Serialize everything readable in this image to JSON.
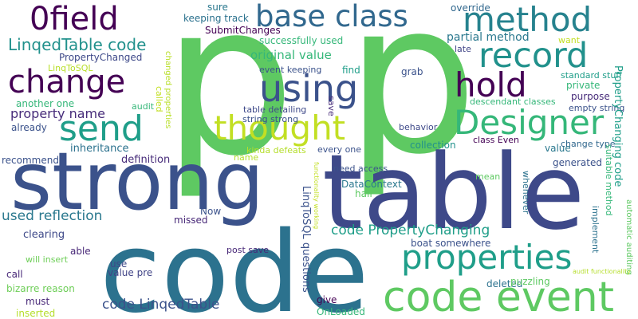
{
  "words": [
    {
      "text": "p",
      "color": "#5ec962"
    },
    {
      "text": "p",
      "color": "#5ec962"
    },
    {
      "text": "table",
      "color": "#3e4989"
    },
    {
      "text": "code",
      "color": "#2c728e"
    },
    {
      "text": "strong",
      "color": "#3b528b"
    },
    {
      "text": "code event",
      "color": "#5ec962"
    },
    {
      "text": "0field",
      "color": "#440154"
    },
    {
      "text": "base class",
      "color": "#31688e"
    },
    {
      "text": "method",
      "color": "#26828e"
    },
    {
      "text": "record",
      "color": "#21918c"
    },
    {
      "text": "change",
      "color": "#440154"
    },
    {
      "text": "using",
      "color": "#3b528b"
    },
    {
      "text": "hold",
      "color": "#440154"
    },
    {
      "text": "send",
      "color": "#1f9e89"
    },
    {
      "text": "thought",
      "color": "#c2df23"
    },
    {
      "text": "Designer",
      "color": "#35b779"
    },
    {
      "text": "properties",
      "color": "#1f9e89"
    },
    {
      "text": "LinqedTable code",
      "color": "#21918c"
    },
    {
      "text": "PropertyChanged",
      "color": "#3e4989"
    },
    {
      "text": "LinqToSQL",
      "color": "#b8de29"
    },
    {
      "text": "original value",
      "color": "#35b779"
    },
    {
      "text": "partial method",
      "color": "#2a788e"
    },
    {
      "text": "another one",
      "color": "#35b779"
    },
    {
      "text": "property name",
      "color": "#472c7a"
    },
    {
      "text": "already",
      "color": "#3b528b"
    },
    {
      "text": "inheritance",
      "color": "#2c728e"
    },
    {
      "text": "recommend",
      "color": "#3b528b"
    },
    {
      "text": "definition",
      "color": "#472c7a"
    },
    {
      "text": "used reflection",
      "color": "#2a788e"
    },
    {
      "text": "clearing",
      "color": "#3e4989"
    },
    {
      "text": "able",
      "color": "#482878"
    },
    {
      "text": "will insert",
      "color": "#6ece58"
    },
    {
      "text": "call",
      "color": "#482878"
    },
    {
      "text": "bizarre reason",
      "color": "#6ece58"
    },
    {
      "text": "must",
      "color": "#482878"
    },
    {
      "text": "inserted",
      "color": "#b5de2b"
    },
    {
      "text": "code LinqedTable",
      "color": "#3b528b"
    },
    {
      "text": "value pre",
      "color": "#414487"
    },
    {
      "text": "use",
      "color": "#3e4989"
    },
    {
      "text": "missed",
      "color": "#482878"
    },
    {
      "text": "Now",
      "color": "#3b528b"
    },
    {
      "text": "post save",
      "color": "#482878"
    },
    {
      "text": "audit",
      "color": "#35b779"
    },
    {
      "text": "called",
      "color": "#c2df23"
    },
    {
      "text": "changed properties",
      "color": "#b8de29"
    },
    {
      "text": "sure",
      "color": "#2a788e"
    },
    {
      "text": "keeping track",
      "color": "#2c728e"
    },
    {
      "text": "SubmitChanges",
      "color": "#440154"
    },
    {
      "text": "successfully used",
      "color": "#35b779"
    },
    {
      "text": "event keeping",
      "color": "#3b528b"
    },
    {
      "text": "find",
      "color": "#1f9e89"
    },
    {
      "text": "grab",
      "color": "#3b528b"
    },
    {
      "text": "table detailing",
      "color": "#3e4989"
    },
    {
      "text": "string strong",
      "color": "#3b528b"
    },
    {
      "text": "save",
      "color": "#472c7a"
    },
    {
      "text": "kinda defeats",
      "color": "#b5de2b"
    },
    {
      "text": "every one",
      "color": "#3b528b"
    },
    {
      "text": "name",
      "color": "#b5de2b"
    },
    {
      "text": "DataContext",
      "color": "#2a788e"
    },
    {
      "text": "need access",
      "color": "#3b528b"
    },
    {
      "text": "half",
      "color": "#5ec962"
    },
    {
      "text": "LinqToSQL questions",
      "color": "#3b528b"
    },
    {
      "text": "functionality working",
      "color": "#c2df23"
    },
    {
      "text": "code PropertyChanging",
      "color": "#1f9e89"
    },
    {
      "text": "boat somewhere",
      "color": "#3b528b"
    },
    {
      "text": "deleted",
      "color": "#2c728e"
    },
    {
      "text": "puzzling",
      "color": "#5ec962"
    },
    {
      "text": "give",
      "color": "#440154"
    },
    {
      "text": "OnLoaded",
      "color": "#35b779"
    },
    {
      "text": "override",
      "color": "#31688e"
    },
    {
      "text": "want",
      "color": "#c2df23"
    },
    {
      "text": "late",
      "color": "#414487"
    },
    {
      "text": "standard stuff",
      "color": "#1f9e89"
    },
    {
      "text": "private",
      "color": "#35b779"
    },
    {
      "text": "purpose",
      "color": "#472c7a"
    },
    {
      "text": "descendant classes",
      "color": "#35b779"
    },
    {
      "text": "empty string",
      "color": "#3b528b"
    },
    {
      "text": "PropertyChanging code",
      "color": "#1f9e89"
    },
    {
      "text": "behavior",
      "color": "#3e4989"
    },
    {
      "text": "collection",
      "color": "#21918c"
    },
    {
      "text": "class Even",
      "color": "#440154"
    },
    {
      "text": "value",
      "color": "#2a788e"
    },
    {
      "text": "change type",
      "color": "#31688e"
    },
    {
      "text": "generated",
      "color": "#3b528b"
    },
    {
      "text": "mean",
      "color": "#5ec962"
    },
    {
      "text": "whenever",
      "color": "#2c728e"
    },
    {
      "text": "suitable method",
      "color": "#35b779"
    },
    {
      "text": "implement",
      "color": "#2c728e"
    },
    {
      "text": "automatic auditing",
      "color": "#5ec962"
    },
    {
      "text": "audit functionality",
      "color": "#b5de2b"
    }
  ]
}
